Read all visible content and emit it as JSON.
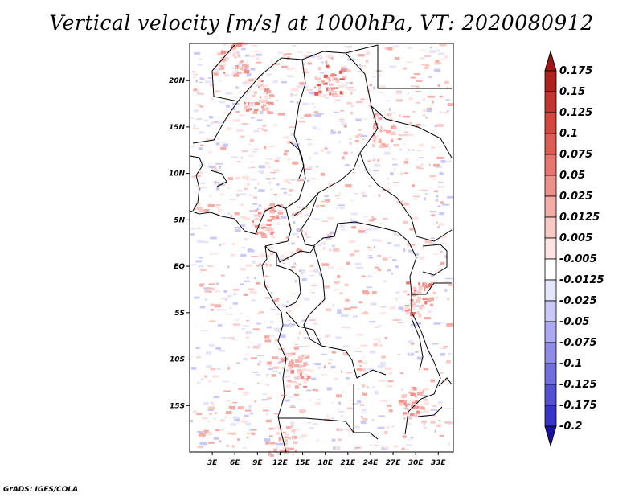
{
  "title": "Vertical velocity [m/s] at 1000hPa, VT: 2020080912",
  "credit": "GrADS: IGES/COLA",
  "map": {
    "lon_range": [
      0,
      35
    ],
    "lat_range": [
      -20,
      24
    ],
    "lon_ticks": [
      {
        "value": 3,
        "label": "3E"
      },
      {
        "value": 6,
        "label": "6E"
      },
      {
        "value": 9,
        "label": "9E"
      },
      {
        "value": 12,
        "label": "12E"
      },
      {
        "value": 15,
        "label": "15E"
      },
      {
        "value": 18,
        "label": "18E"
      },
      {
        "value": 21,
        "label": "21E"
      },
      {
        "value": 24,
        "label": "24E"
      },
      {
        "value": 27,
        "label": "27E"
      },
      {
        "value": 30,
        "label": "30E"
      },
      {
        "value": 33,
        "label": "33E"
      }
    ],
    "lat_ticks": [
      {
        "value": 20,
        "label": "20N"
      },
      {
        "value": 15,
        "label": "15N"
      },
      {
        "value": 10,
        "label": "10N"
      },
      {
        "value": 5,
        "label": "5N"
      },
      {
        "value": 0,
        "label": "EQ"
      },
      {
        "value": -5,
        "label": "5S"
      },
      {
        "value": -10,
        "label": "10S"
      },
      {
        "value": -15,
        "label": "15S"
      }
    ]
  },
  "colorbar": {
    "levels": [
      {
        "label": "0.175",
        "color": "#b0201e"
      },
      {
        "label": "0.15",
        "color": "#c53330"
      },
      {
        "label": "0.125",
        "color": "#d5463f"
      },
      {
        "label": "0.1",
        "color": "#df5c55"
      },
      {
        "label": "0.075",
        "color": "#e7766f"
      },
      {
        "label": "0.05",
        "color": "#ee908a"
      },
      {
        "label": "0.025",
        "color": "#f4aca7"
      },
      {
        "label": "0.0125",
        "color": "#f9c9c5"
      },
      {
        "label": "0.005",
        "color": "#fde4e2"
      },
      {
        "label": "-0.005",
        "color": "#ffffff"
      },
      {
        "label": "-0.0125",
        "color": "#e4e4fb"
      },
      {
        "label": "-0.025",
        "color": "#c9c8f6"
      },
      {
        "label": "-0.05",
        "color": "#aba9ef"
      },
      {
        "label": "-0.075",
        "color": "#8f8ce8"
      },
      {
        "label": "-0.1",
        "color": "#716ee0"
      },
      {
        "label": "-0.125",
        "color": "#5450d6"
      },
      {
        "label": "-0.175",
        "color": "#3a35c9"
      },
      {
        "label": "-0.2",
        "color": "#2420b6"
      }
    ],
    "top_color": "#a01614",
    "bottom_color": "#1a10a0"
  }
}
